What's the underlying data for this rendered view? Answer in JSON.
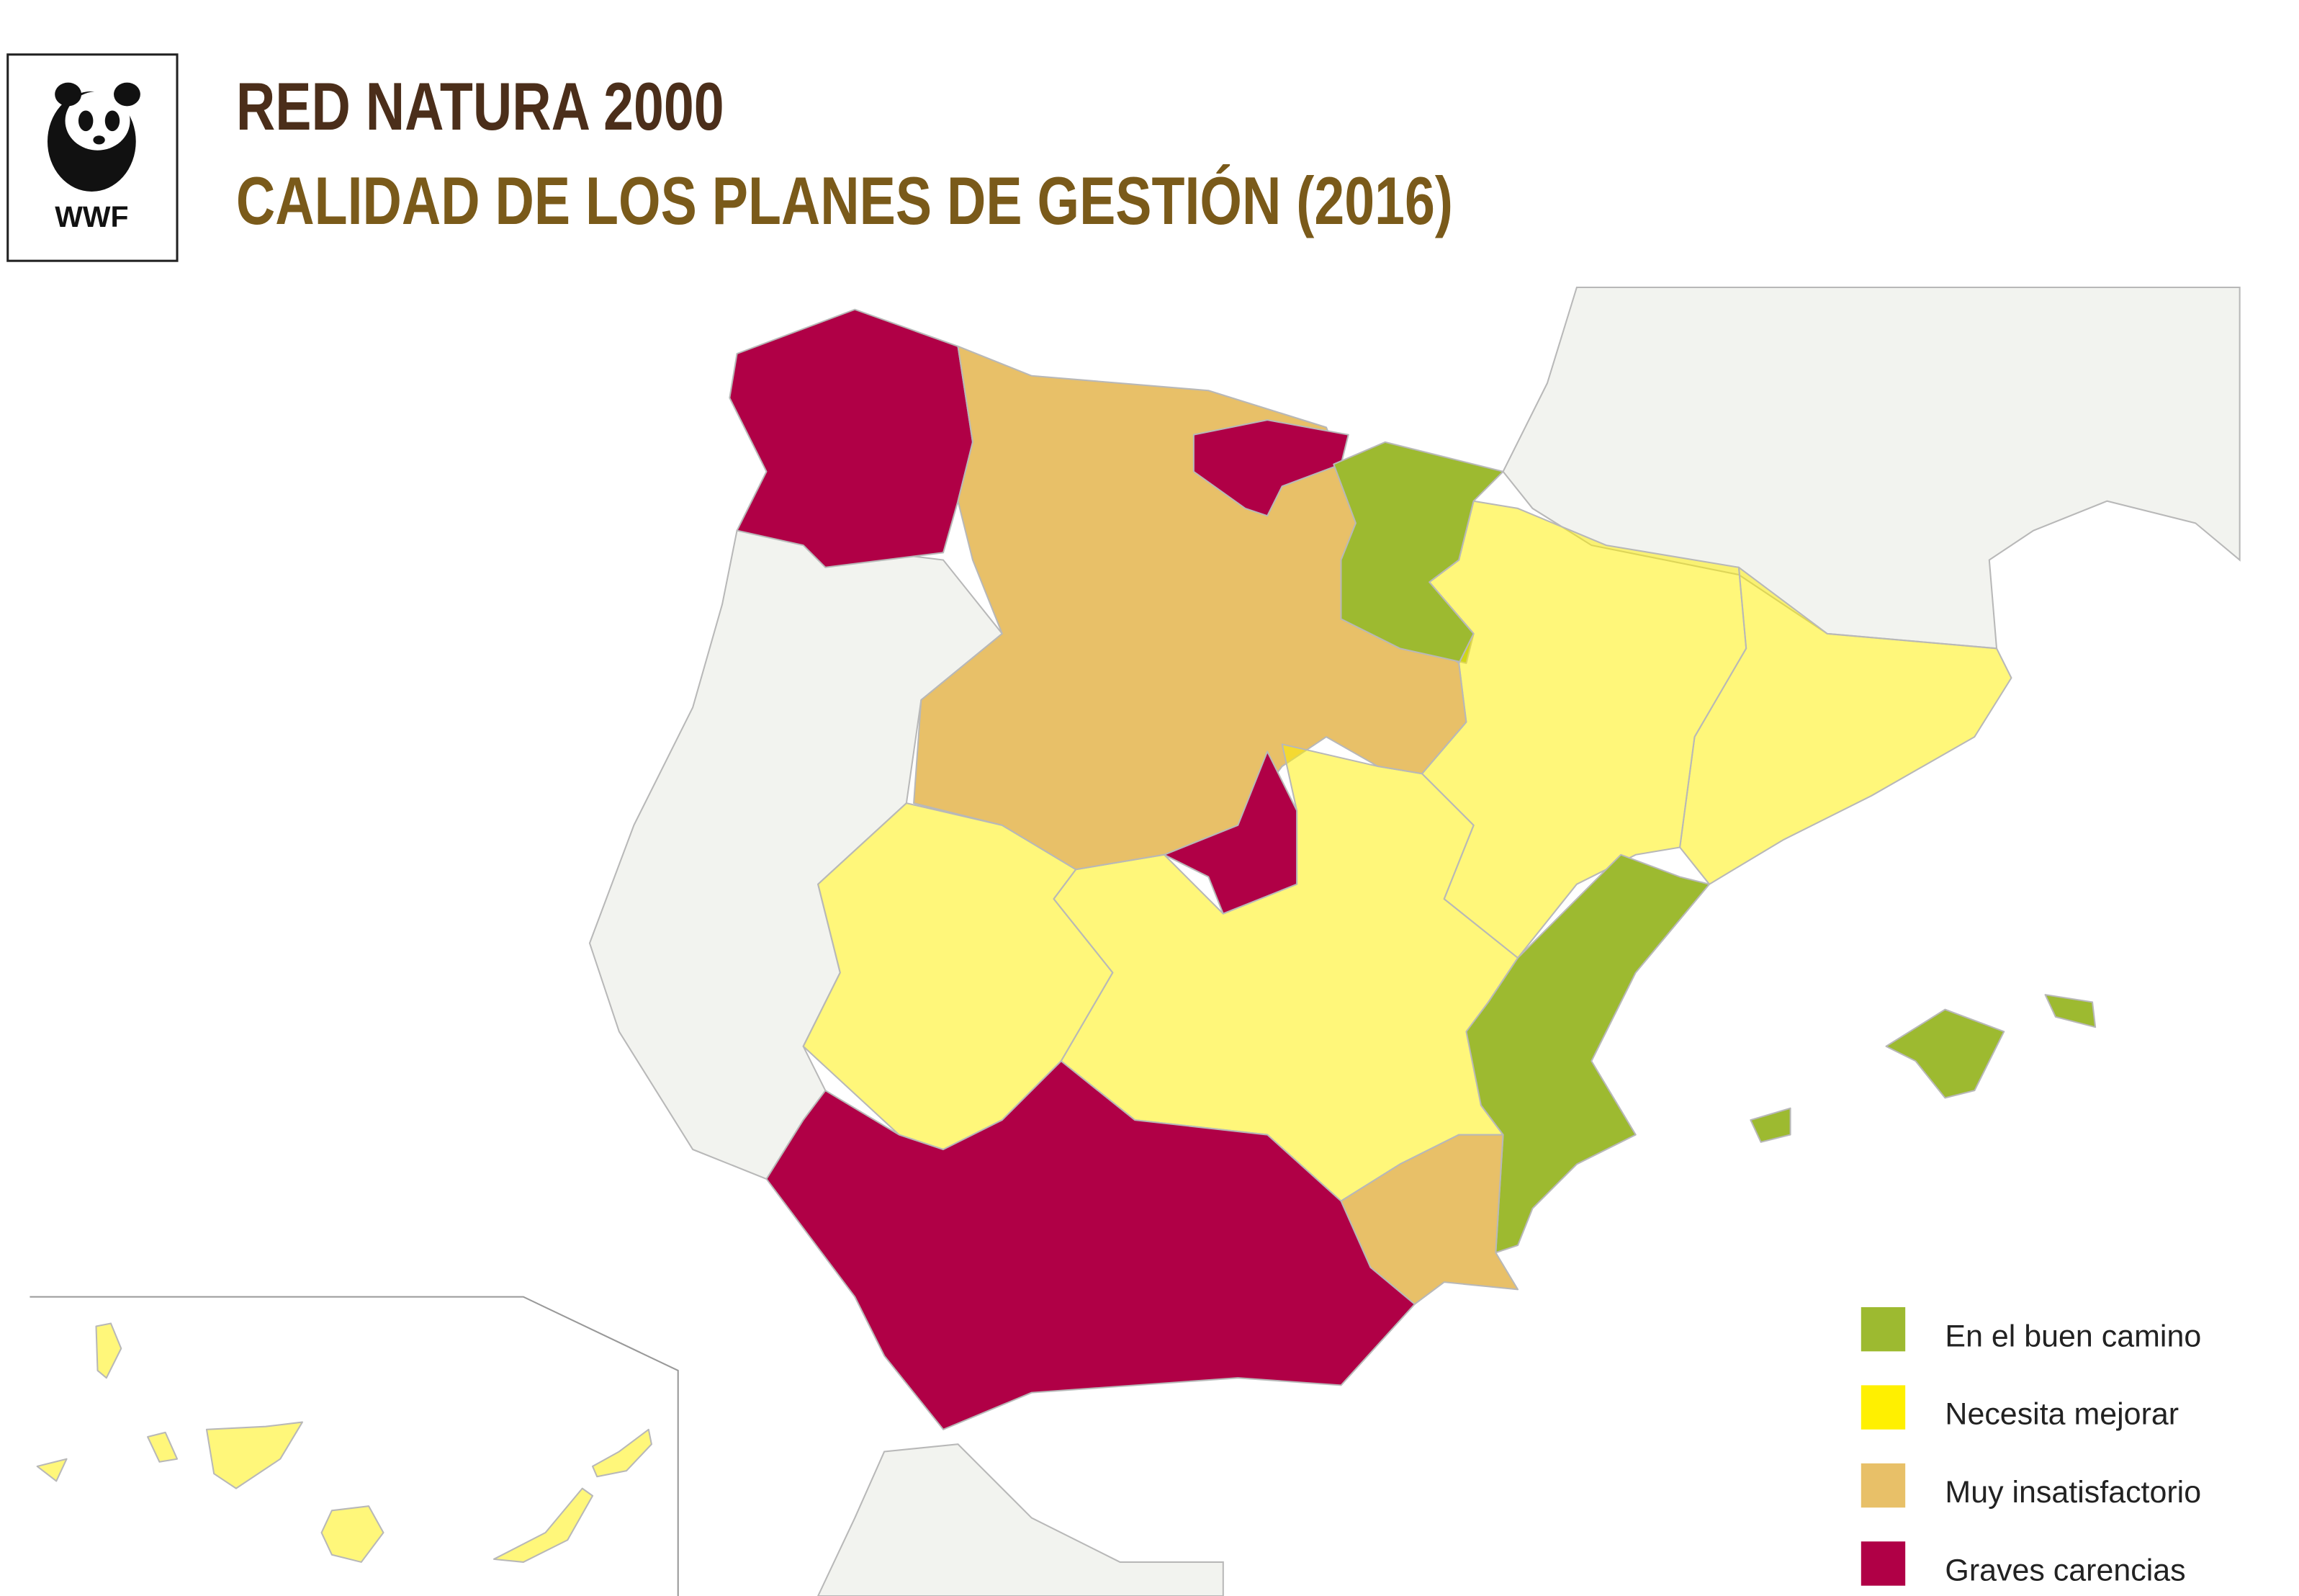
{
  "header": {
    "logo": "WWF",
    "title": "RED NATURA 2000",
    "subtitle": "CALIDAD DE LOS PLANES DE GESTIÓN (2016)"
  },
  "legend": {
    "items": [
      {
        "label": "En el buen camino",
        "color": "#9dba30"
      },
      {
        "label": "Necesita mejorar",
        "color": "#fff000"
      },
      {
        "label": "Muy insatisfactorio",
        "color": "#e8c068"
      },
      {
        "label": "Graves carencias",
        "color": "#b00046"
      }
    ]
  }
}
